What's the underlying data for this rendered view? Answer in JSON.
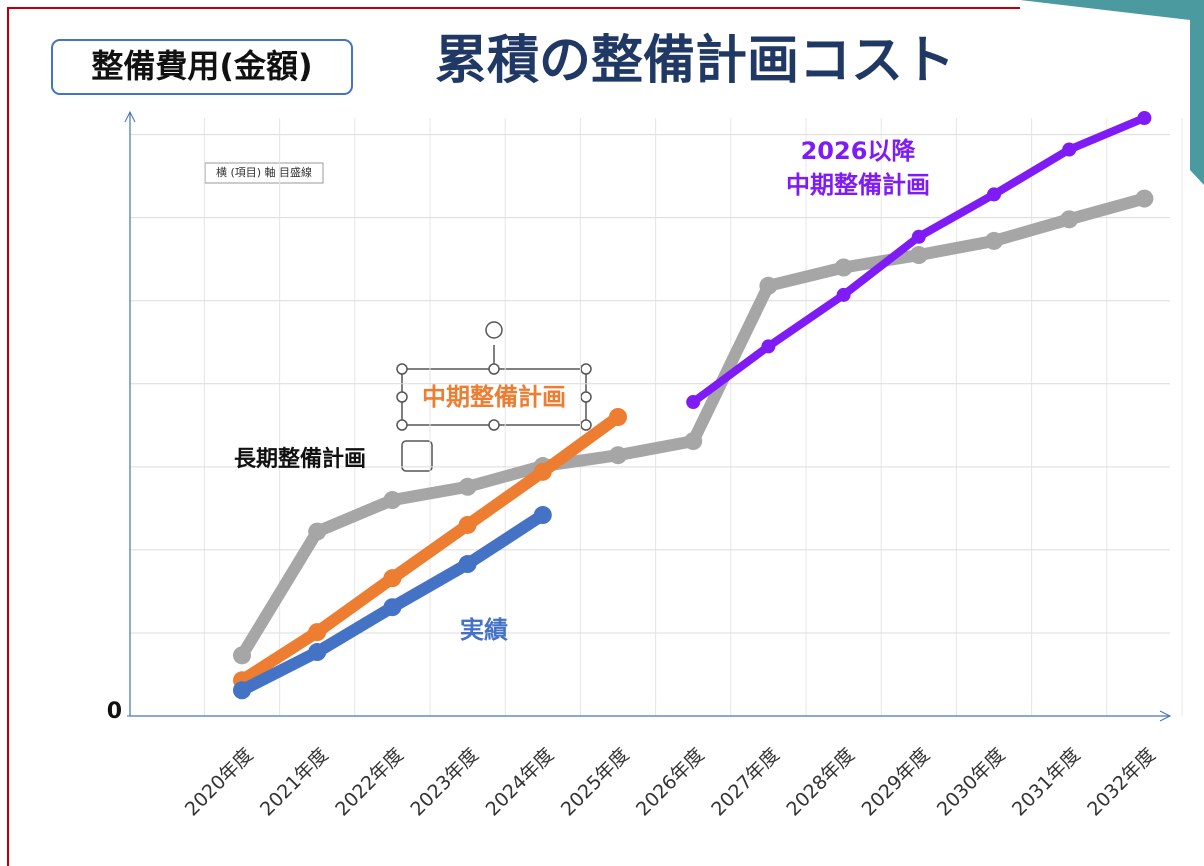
{
  "header": {
    "badge": "整備費用(金額)",
    "tooltip": "横 (項目) 軸 目盛線"
  },
  "chart_data": {
    "type": "line",
    "title": "累積の整備計画コスト",
    "categories": [
      "2020年度",
      "2021年度",
      "2022年度",
      "2023年度",
      "2024年度",
      "2025年度",
      "2026年度",
      "2027年度",
      "2028年度",
      "2029年度",
      "2030年度",
      "2031年度",
      "2032年度"
    ],
    "series": [
      {
        "name": "長期整備計画",
        "color": "#a6a6a6",
        "values": [
          0.73,
          2.22,
          2.6,
          2.76,
          3.01,
          3.14,
          3.31,
          5.18,
          5.4,
          5.55,
          5.72,
          5.98,
          6.23
        ]
      },
      {
        "name": "中期整備計画",
        "color": "#ed7d31",
        "values": [
          0.43,
          1.01,
          1.66,
          2.3,
          2.94,
          3.6,
          null,
          null,
          null,
          null,
          null,
          null,
          null
        ]
      },
      {
        "name": "実績",
        "color": "#4472c4",
        "values": [
          0.31,
          0.77,
          1.31,
          1.83,
          2.42,
          null,
          null,
          null,
          null,
          null,
          null,
          null,
          null
        ]
      },
      {
        "name": "2026以降\n中期整備計画",
        "color": "#7f1cf5",
        "values": [
          null,
          null,
          null,
          null,
          null,
          null,
          3.78,
          4.45,
          5.07,
          5.77,
          6.28,
          6.82,
          7.2
        ]
      }
    ],
    "ylim": [
      0,
      7.2
    ],
    "yticks": [
      0
    ],
    "ygrid": [
      1,
      2,
      3,
      4,
      5,
      6,
      7
    ],
    "grid": true
  }
}
